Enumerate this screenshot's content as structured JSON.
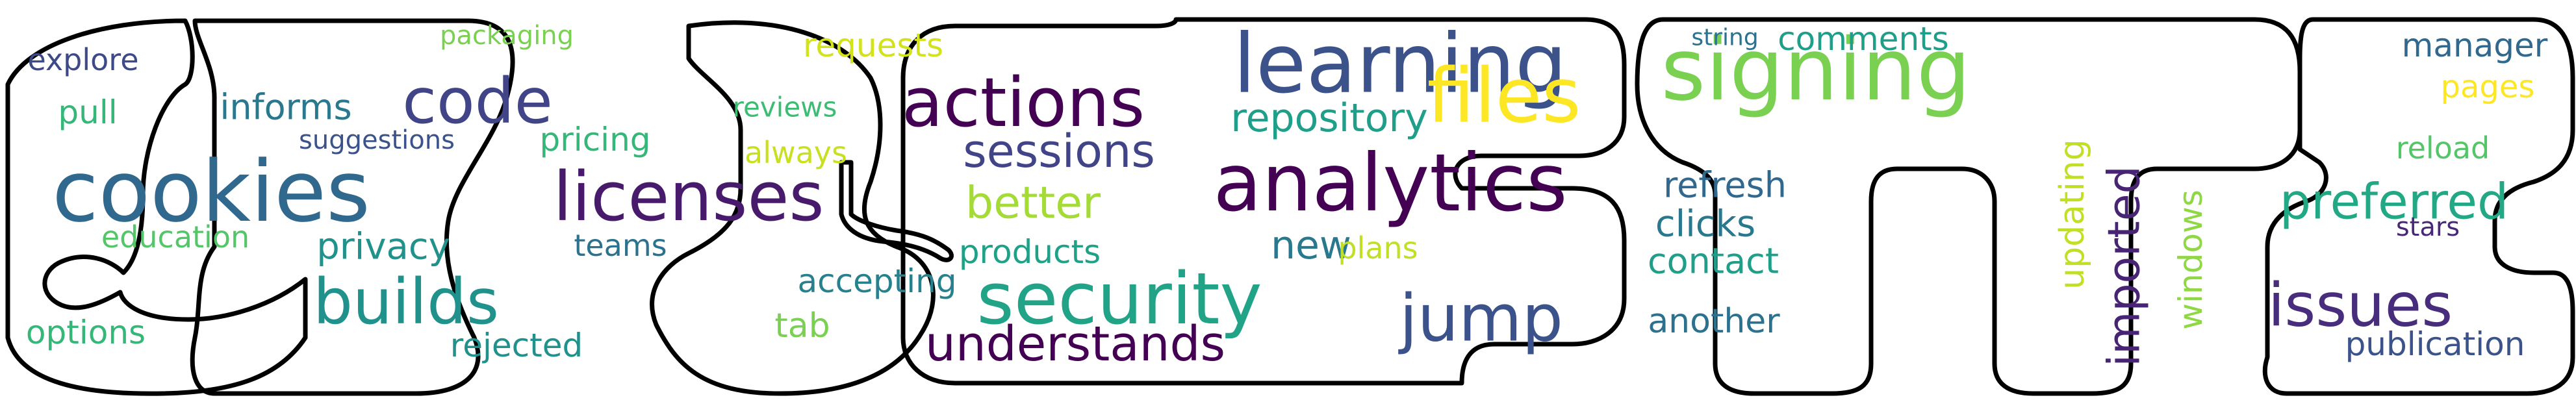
{
  "words": [
    {
      "text": "cookies",
      "color": "#31688e",
      "size": 130,
      "rotate": 0
    },
    {
      "text": "signing",
      "color": "#7ad151",
      "size": 132,
      "rotate": 0
    },
    {
      "text": "learning",
      "color": "#3b528b",
      "size": 126,
      "rotate": 0
    },
    {
      "text": "analytics",
      "color": "#440154",
      "size": 122,
      "rotate": 0
    },
    {
      "text": "security",
      "color": "#20a386",
      "size": 110,
      "rotate": 0
    },
    {
      "text": "actions",
      "color": "#440154",
      "size": 104,
      "rotate": 0
    },
    {
      "text": "licenses",
      "color": "#481a6c",
      "size": 104,
      "rotate": 0
    },
    {
      "text": "files",
      "color": "#fde725",
      "size": 116,
      "rotate": 0
    },
    {
      "text": "code",
      "color": "#414487",
      "size": 96,
      "rotate": 0
    },
    {
      "text": "builds",
      "color": "#21918c",
      "size": 96,
      "rotate": 0
    },
    {
      "text": "jump",
      "color": "#3b528b",
      "size": 100,
      "rotate": 0
    },
    {
      "text": "issues",
      "color": "#472d7b",
      "size": 92,
      "rotate": 0
    },
    {
      "text": "preferred",
      "color": "#22a884",
      "size": 76,
      "rotate": 0
    },
    {
      "text": "understands",
      "color": "#440154",
      "size": 74,
      "rotate": 0
    },
    {
      "text": "sessions",
      "color": "#414487",
      "size": 70,
      "rotate": 0
    },
    {
      "text": "better",
      "color": "#a5db36",
      "size": 68,
      "rotate": 0
    },
    {
      "text": "imported",
      "color": "#482475",
      "size": 68,
      "rotate": -90
    },
    {
      "text": "repository",
      "color": "#1f9e89",
      "size": 60,
      "rotate": 0
    },
    {
      "text": "new",
      "color": "#2a788e",
      "size": 60,
      "rotate": 0
    },
    {
      "text": "privacy",
      "color": "#21918c",
      "size": 56,
      "rotate": 0
    },
    {
      "text": "informs",
      "color": "#2a788e",
      "size": 54,
      "rotate": 0
    },
    {
      "text": "pricing",
      "color": "#35b779",
      "size": 50,
      "rotate": 0
    },
    {
      "text": "refresh",
      "color": "#31688e",
      "size": 54,
      "rotate": 0
    },
    {
      "text": "clicks",
      "color": "#2a788e",
      "size": 56,
      "rotate": 0
    },
    {
      "text": "contact",
      "color": "#1f9e89",
      "size": 54,
      "rotate": 0
    },
    {
      "text": "another",
      "color": "#2c728e",
      "size": 52,
      "rotate": 0
    },
    {
      "text": "products",
      "color": "#1fa187",
      "size": 50,
      "rotate": 0
    },
    {
      "text": "accepting",
      "color": "#27808e",
      "size": 50,
      "rotate": 0
    },
    {
      "text": "options",
      "color": "#35b779",
      "size": 50,
      "rotate": 0
    },
    {
      "text": "education",
      "color": "#54c568",
      "size": 46,
      "rotate": 0
    },
    {
      "text": "rejected",
      "color": "#21918c",
      "size": 50,
      "rotate": 0
    },
    {
      "text": "teams",
      "color": "#2c728e",
      "size": 46,
      "rotate": 0
    },
    {
      "text": "pull",
      "color": "#35b779",
      "size": 50,
      "rotate": 0
    },
    {
      "text": "explore",
      "color": "#3e4989",
      "size": 46,
      "rotate": 0
    },
    {
      "text": "suggestions",
      "color": "#3b528b",
      "size": 40,
      "rotate": 0
    },
    {
      "text": "packaging",
      "color": "#7ad151",
      "size": 40,
      "rotate": 0
    },
    {
      "text": "requests",
      "color": "#d2e21b",
      "size": 50,
      "rotate": 0
    },
    {
      "text": "reviews",
      "color": "#3dbc74",
      "size": 42,
      "rotate": 0
    },
    {
      "text": "always",
      "color": "#c8e020",
      "size": 46,
      "rotate": 0
    },
    {
      "text": "tab",
      "color": "#7ad151",
      "size": 52,
      "rotate": 0
    },
    {
      "text": "plans",
      "color": "#c0df25",
      "size": 46,
      "rotate": 0
    },
    {
      "text": "string",
      "color": "#2c728e",
      "size": 36,
      "rotate": 0
    },
    {
      "text": "comments",
      "color": "#1f9e89",
      "size": 50,
      "rotate": 0
    },
    {
      "text": "manager",
      "color": "#31688e",
      "size": 50,
      "rotate": 0
    },
    {
      "text": "pages",
      "color": "#fde725",
      "size": 48,
      "rotate": 0
    },
    {
      "text": "reload",
      "color": "#54c568",
      "size": 46,
      "rotate": 0
    },
    {
      "text": "stars",
      "color": "#482878",
      "size": 40,
      "rotate": 0
    },
    {
      "text": "publication",
      "color": "#3b528b",
      "size": 50,
      "rotate": 0
    },
    {
      "text": "updating",
      "color": "#c2df23",
      "size": 52,
      "rotate": -90
    },
    {
      "text": "windows",
      "color": "#8fd744",
      "size": 50,
      "rotate": -90
    }
  ]
}
